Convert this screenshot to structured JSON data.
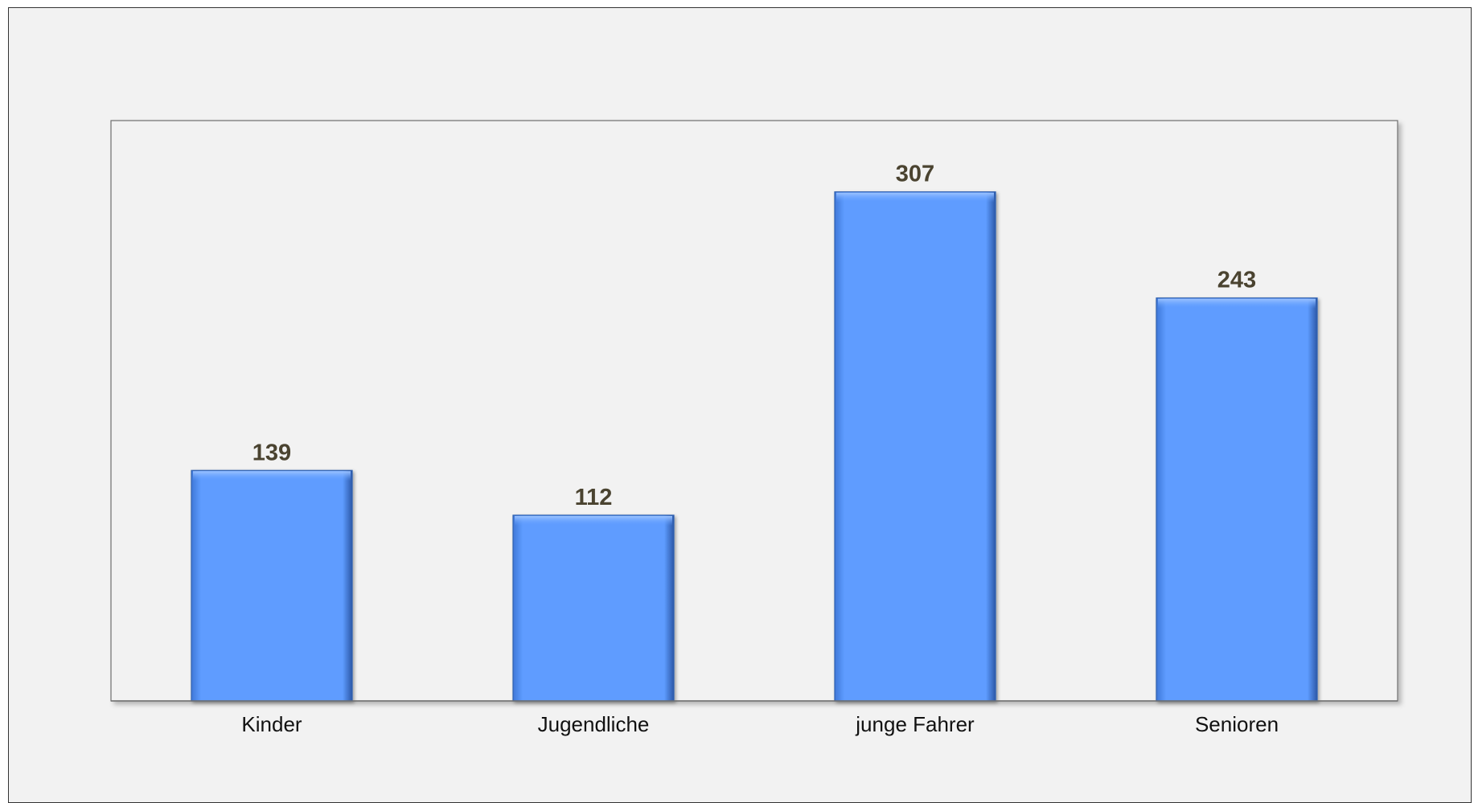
{
  "chart_data": {
    "type": "bar",
    "title": "",
    "xlabel": "",
    "ylabel": "",
    "categories": [
      "Kinder",
      "Jugendliche",
      "junge Fahrer",
      "Senioren"
    ],
    "values": [
      139,
      112,
      307,
      243
    ],
    "ylim": [
      0,
      350
    ],
    "grid": false,
    "legend": "none",
    "data_labels": true,
    "colors": {
      "bar": "#5e9cff",
      "bar_edge": "#2f5fae",
      "plot_background": "#f2f2f2",
      "frame_border": "#333333",
      "value_label": "#4a4330",
      "tick_label": "#111111"
    }
  }
}
